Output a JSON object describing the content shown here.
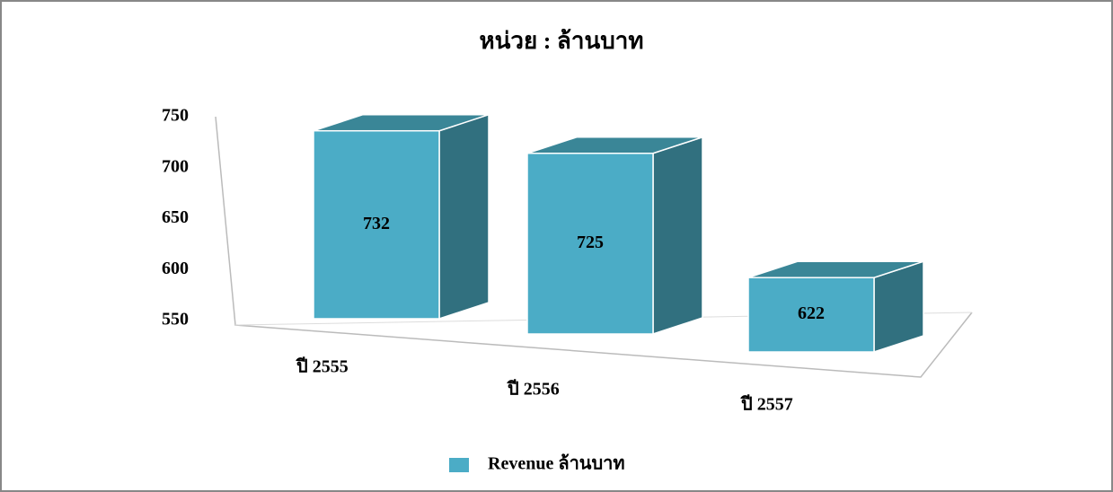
{
  "chart_data": {
    "type": "bar3d",
    "title": "หน่วย : ล้านบาท",
    "categories": [
      "ปี 2555",
      "ปี 2556",
      "ปี 2557"
    ],
    "series": [
      {
        "name": "Revenue ล้านบาท",
        "color": "#4bacc6",
        "values": [
          732,
          725,
          622
        ]
      }
    ],
    "ylim": [
      550,
      750
    ],
    "yticks": [
      550,
      600,
      650,
      700,
      750
    ],
    "grid": false,
    "legend": "bottom"
  }
}
